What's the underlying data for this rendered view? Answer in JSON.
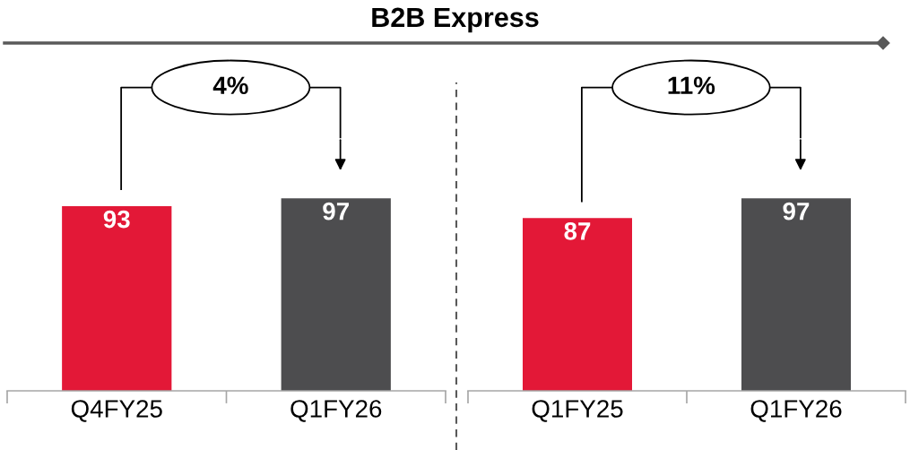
{
  "chart_data": [
    {
      "type": "bar",
      "title": "B2B Express",
      "categories": [
        "Q4FY25",
        "Q1FY26"
      ],
      "values": [
        93,
        97
      ],
      "colors": [
        "#e31837",
        "#4d4d4f"
      ],
      "data_labels": true,
      "annotations": [
        "4%"
      ]
    },
    {
      "type": "bar",
      "categories": [
        "Q1FY25",
        "Q1FY26"
      ],
      "values": [
        87,
        97
      ],
      "colors": [
        "#e31837",
        "#4d4d4f"
      ],
      "data_labels": true,
      "annotations": [
        "11%"
      ]
    }
  ]
}
